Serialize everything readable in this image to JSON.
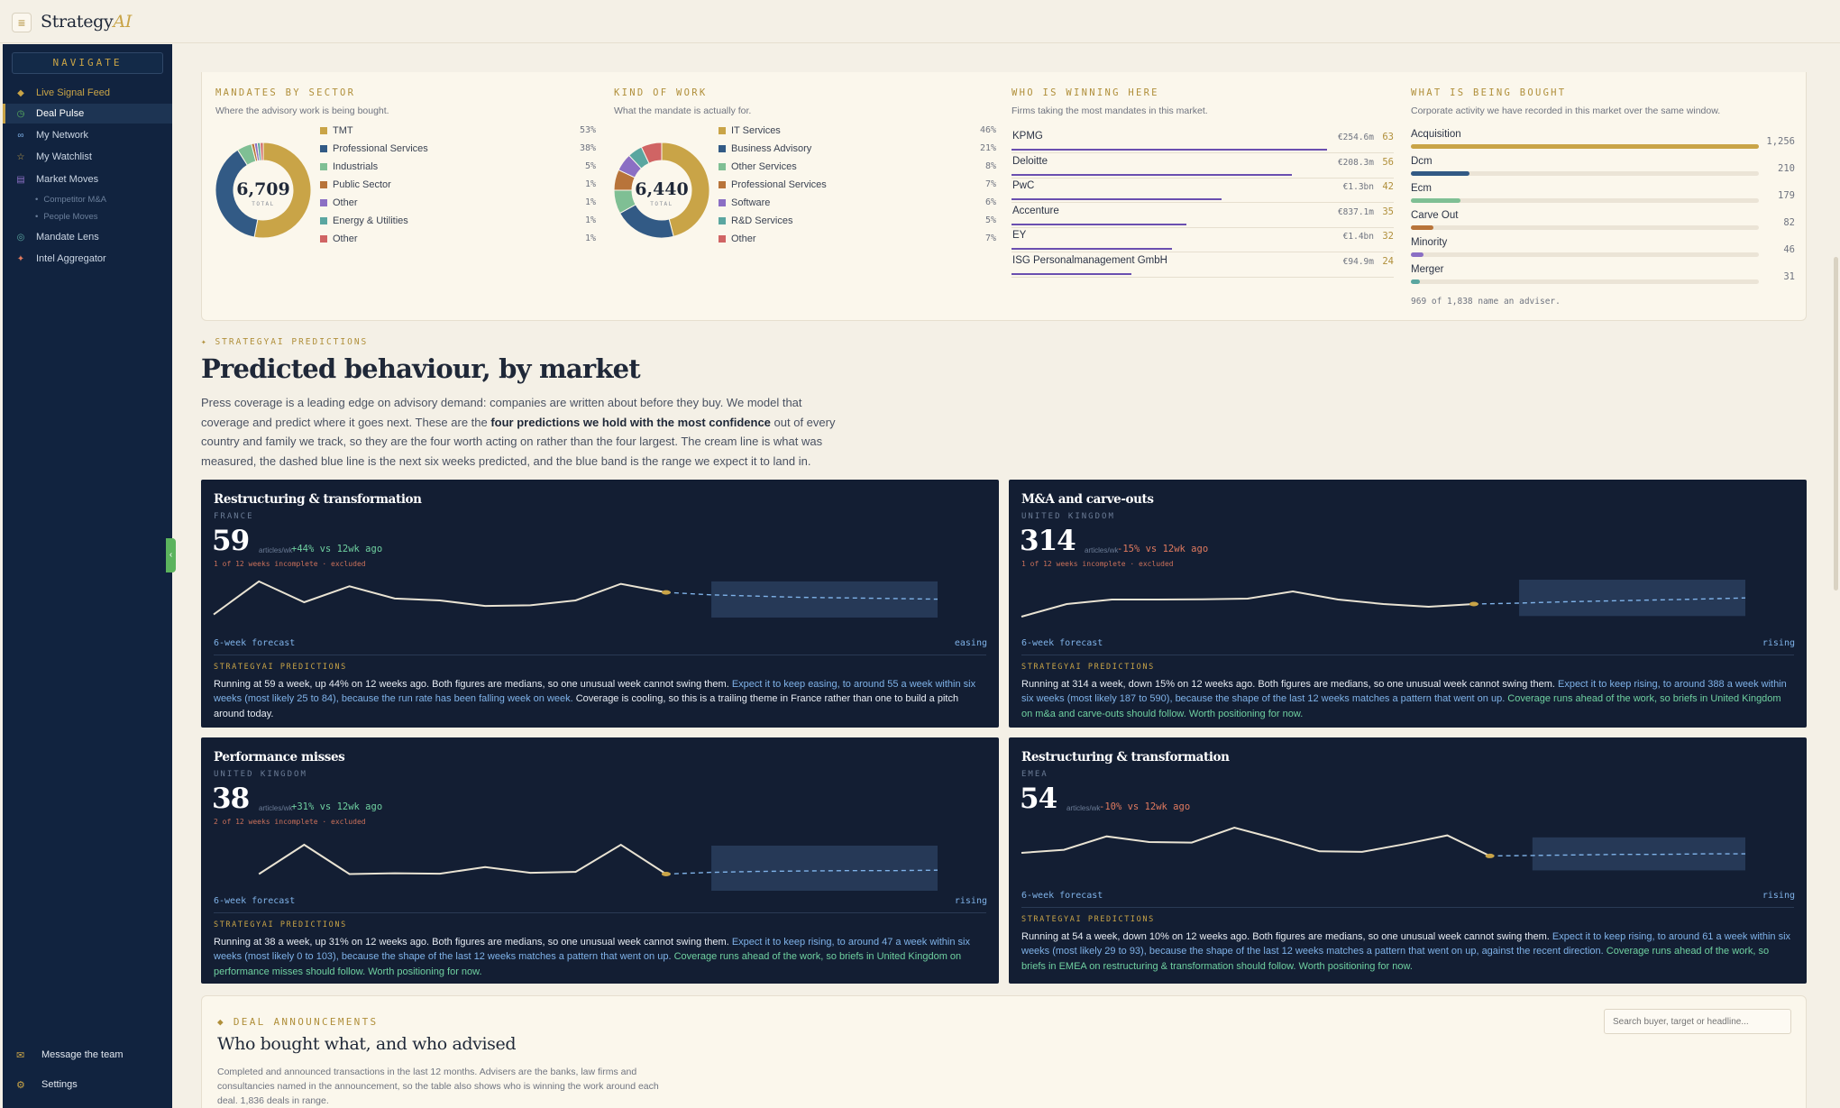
{
  "app": {
    "brand_main": "Strategy",
    "brand_ai": "AI",
    "menu_icon": "menu-icon"
  },
  "sidebar": {
    "heading": "NAVIGATE",
    "items": [
      {
        "label": "Live Signal Feed",
        "icon": "diamond-icon"
      },
      {
        "label": "Deal Pulse",
        "icon": "clock-icon"
      },
      {
        "label": "My Network",
        "icon": "network-icon"
      },
      {
        "label": "My Watchlist",
        "icon": "star-icon"
      },
      {
        "label": "Market Moves",
        "icon": "grid-icon"
      },
      {
        "label": "Mandate Lens",
        "icon": "lens-icon"
      },
      {
        "label": "Intel Aggregator",
        "icon": "spark-icon"
      }
    ],
    "subitems": [
      "Competitor M&A",
      "People Moves"
    ],
    "bottom": [
      {
        "label": "Message the team",
        "icon": "mail-icon"
      },
      {
        "label": "Settings",
        "icon": "gear-icon"
      }
    ]
  },
  "sector": {
    "label": "MANDATES BY SECTOR",
    "subtitle": "Where the advisory work is being bought.",
    "total": "6,709",
    "total_label": "TOTAL",
    "slices": [
      {
        "name": "TMT",
        "pct": "53%",
        "value": 53,
        "color": "#c9a447"
      },
      {
        "name": "Professional Services",
        "pct": "38%",
        "value": 38,
        "color": "#325a85"
      },
      {
        "name": "Industrials",
        "pct": "5%",
        "value": 5,
        "color": "#7fbf94"
      },
      {
        "name": "Public Sector",
        "pct": "1%",
        "value": 1,
        "color": "#b8743a"
      },
      {
        "name": "Other",
        "pct": "1%",
        "value": 1,
        "color": "#8b6fc4"
      },
      {
        "name": "Energy & Utilities",
        "pct": "1%",
        "value": 1,
        "color": "#5aa6a0"
      },
      {
        "name": "Other",
        "pct": "1%",
        "value": 1,
        "color": "#d06464"
      }
    ]
  },
  "kind": {
    "label": "KIND OF WORK",
    "subtitle": "What the mandate is actually for.",
    "total": "6,440",
    "total_label": "TOTAL",
    "slices": [
      {
        "name": "IT Services",
        "pct": "46%",
        "value": 46,
        "color": "#c9a447"
      },
      {
        "name": "Business Advisory",
        "pct": "21%",
        "value": 21,
        "color": "#325a85"
      },
      {
        "name": "Other Services",
        "pct": "8%",
        "value": 8,
        "color": "#7fbf94"
      },
      {
        "name": "Professional Services",
        "pct": "7%",
        "value": 7,
        "color": "#b8743a"
      },
      {
        "name": "Software",
        "pct": "6%",
        "value": 6,
        "color": "#8b6fc4"
      },
      {
        "name": "R&D Services",
        "pct": "5%",
        "value": 5,
        "color": "#5aa6a0"
      },
      {
        "name": "Other",
        "pct": "7%",
        "value": 7,
        "color": "#d06464"
      }
    ]
  },
  "winning": {
    "label": "WHO IS WINNING HERE",
    "subtitle": "Firms taking the most mandates in this market.",
    "rows": [
      {
        "name": "KPMG",
        "value": "€254.6m",
        "count": "63",
        "count_num": 63
      },
      {
        "name": "Deloitte",
        "value": "€208.3m",
        "count": "56",
        "count_num": 56
      },
      {
        "name": "PwC",
        "value": "€1.3bn",
        "count": "42",
        "count_num": 42
      },
      {
        "name": "Accenture",
        "value": "€837.1m",
        "count": "35",
        "count_num": 35
      },
      {
        "name": "EY",
        "value": "€1.4bn",
        "count": "32",
        "count_num": 32
      },
      {
        "name": "ISG Personalmanagement GmbH",
        "value": "€94.9m",
        "count": "24",
        "count_num": 24
      }
    ]
  },
  "bought": {
    "label": "WHAT IS BEING BOUGHT",
    "subtitle": "Corporate activity we have recorded in this market over the same window.",
    "rows": [
      {
        "name": "Acquisition",
        "count": "1,256",
        "count_num": 1256,
        "color": "#c9a447"
      },
      {
        "name": "Dcm",
        "count": "210",
        "count_num": 210,
        "color": "#325a85"
      },
      {
        "name": "Ecm",
        "count": "179",
        "count_num": 179,
        "color": "#7fbf94"
      },
      {
        "name": "Carve Out",
        "count": "82",
        "count_num": 82,
        "color": "#b8743a"
      },
      {
        "name": "Minority",
        "count": "46",
        "count_num": 46,
        "color": "#8b6fc4"
      },
      {
        "name": "Merger",
        "count": "31",
        "count_num": 31,
        "color": "#5aa6a0"
      }
    ],
    "footnote": "969 of 1,838 name an adviser."
  },
  "predictions": {
    "label": "✦ STRATEGYAI PREDICTIONS",
    "title": "Predicted behaviour, by market",
    "intro_pre": "Press coverage is a leading edge on advisory demand: companies are written about before they buy. We model that coverage and predict where it goes next. These are the ",
    "intro_bold": "four predictions we hold with the most confidence",
    "intro_post": " out of every country and family we track, so they are the four worth acting on rather than the four largest. The cream line is what was measured, the dashed blue line is the next six weeks predicted, and the blue band is the range we expect it to land in.",
    "cards": [
      {
        "title": "Restructuring & transformation",
        "region": "FRANCE",
        "value": "59",
        "unit": "articles/wk",
        "change": "+44% vs 12wk ago",
        "change_color": "#6fd0a0",
        "incomplete": "1 of 12 weeks incomplete · excluded",
        "forecast_label": "6-week forecast",
        "trend": "easing",
        "pred_label": "STRATEGYAI PREDICTIONS",
        "text_white": "Running at 59 a week, up 44% on 12 weeks ago. Both figures are medians, so one unusual week cannot swing them. ",
        "text_blue": "Expect it to keep easing, to around 55 a week within six weeks (most likely 25 to 84), because the run rate has been falling week on week.",
        "text_green": "",
        "text_tail": " Coverage is cooling, so this is a trailing theme in France rather than one to build a pitch around today.",
        "history": [
          30,
          84,
          50,
          76,
          56,
          53,
          44,
          45,
          53,
          80,
          66
        ],
        "forecast": [
          62,
          60,
          58,
          57,
          56,
          55
        ],
        "band_low": 25,
        "band_high": 84,
        "y_max": 100
      },
      {
        "title": "M&A and carve-outs",
        "region": "UNITED KINGDOM",
        "value": "314",
        "unit": "articles/wk",
        "change": "-15% vs 12wk ago",
        "change_color": "#e07a5f",
        "incomplete": "1 of 12 weeks incomplete · excluded",
        "forecast_label": "6-week forecast",
        "trend": "rising",
        "pred_label": "STRATEGYAI PREDICTIONS",
        "text_white": "Running at 314 a week, down 15% on 12 weeks ago. Both figures are medians, so one unusual week cannot swing them. ",
        "text_blue": "Expect it to keep rising, to around 388 a week within six weeks (most likely 187 to 590), because the shape of the last 12 weeks matches a pattern that went on up.",
        "text_green": " Coverage runs ahead of the work, so briefs in United Kingdom on m&a and carve-outs should follow. Worth positioning for now.",
        "text_tail": "",
        "history": [
          180,
          320,
          370,
          370,
          372,
          380,
          460,
          370,
          320,
          290,
          320
        ],
        "forecast": [
          330,
          345,
          355,
          365,
          375,
          388
        ],
        "band_low": 187,
        "band_high": 590,
        "y_max": 680
      },
      {
        "title": "Performance misses",
        "region": "UNITED KINGDOM",
        "value": "38",
        "unit": "articles/wk",
        "change": "+31% vs 12wk ago",
        "change_color": "#6fd0a0",
        "incomplete": "2 of 12 weeks incomplete · excluded",
        "forecast_label": "6-week forecast",
        "trend": "rising",
        "pred_label": "STRATEGYAI PREDICTIONS",
        "text_white": "Running at 38 a week, up 31% on 12 weeks ago. Both figures are medians, so one unusual week cannot swing them. ",
        "text_blue": "Expect it to keep rising, to around 47 a week within six weeks (most likely 0 to 103), because the shape of the last 12 weeks matches a pattern that went on up.",
        "text_green": " Coverage runs ahead of the work, so briefs in United Kingdom on performance misses should follow. Worth positioning for now.",
        "text_tail": "",
        "history": [
          null,
          38,
          105,
          38,
          40,
          39,
          54,
          41,
          43,
          105,
          38
        ],
        "forecast": [
          42,
          44,
          45,
          46,
          46,
          47
        ],
        "band_low": 0,
        "band_high": 103,
        "y_max": 140
      },
      {
        "title": "Restructuring & transformation",
        "region": "EMEA",
        "value": "54",
        "unit": "articles/wk",
        "change": "-10% vs 12wk ago",
        "change_color": "#e07a5f",
        "incomplete": "",
        "forecast_label": "6-week forecast",
        "trend": "rising",
        "pred_label": "STRATEGYAI PREDICTIONS",
        "text_white": "Running at 54 a week, down 10% on 12 weeks ago. Both figures are medians, so one unusual week cannot swing them. ",
        "text_blue": "Expect it to keep rising, to around 61 a week within six weeks (most likely 29 to 93), because the shape of the last 12 weeks matches a pattern that went on up, against the recent direction.",
        "text_green": " Coverage runs ahead of the work, so briefs in EMEA on restructuring & transformation should follow. Worth positioning for now.",
        "text_tail": "",
        "history": [
          63,
          69,
          95,
          84,
          83,
          112,
          90,
          66,
          65,
          80,
          97,
          57
        ],
        "forecast": [
          58,
          59,
          60,
          60,
          61,
          61
        ],
        "band_low": 29,
        "band_high": 93,
        "y_max": 140
      }
    ]
  },
  "deals": {
    "label": "◆ DEAL ANNOUNCEMENTS",
    "title": "Who bought what, and who advised",
    "description": "Completed and announced transactions in the last 12 months. Advisers are the banks, law firms and consultancies named in the announcement, so the table also shows who is winning the work around each deal. 1,836 deals in range.",
    "search_placeholder": "Search buyer, target or headline..."
  }
}
